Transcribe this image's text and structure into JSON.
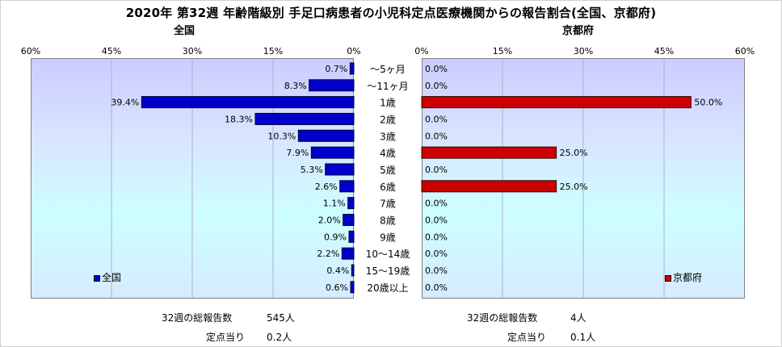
{
  "title": "2020年 第32週 年齢階級別 手足口病患者の小児科定点医療機関からの報告割合(全国、京都府)",
  "chart_data": [
    {
      "type": "bar",
      "orientation": "horizontal",
      "subtitle": "全国",
      "categories": [
        "～5ヶ月",
        "～11ヶ月",
        "1歳",
        "2歳",
        "3歳",
        "4歳",
        "5歳",
        "6歳",
        "7歳",
        "8歳",
        "9歳",
        "10～14歳",
        "15～19歳",
        "20歳以上"
      ],
      "series": [
        {
          "name": "全国",
          "values": [
            0.7,
            8.3,
            39.4,
            18.3,
            10.3,
            7.9,
            5.3,
            2.6,
            1.1,
            2.0,
            0.9,
            2.2,
            0.4,
            0.6
          ],
          "color": "#0000cc"
        }
      ],
      "value_labels": [
        "0.7%",
        "8.3%",
        "39.4%",
        "18.3%",
        "10.3%",
        "7.9%",
        "5.3%",
        "2.6%",
        "1.1%",
        "2.0%",
        "0.9%",
        "2.2%",
        "0.4%",
        "0.6%"
      ],
      "xlim": [
        0,
        60
      ],
      "x_reversed": true,
      "ticks": [
        "60%",
        "45%",
        "30%",
        "15%",
        "0%"
      ],
      "grid": true,
      "legend_position": "bottom-left"
    },
    {
      "type": "bar",
      "orientation": "horizontal",
      "subtitle": "京都府",
      "categories": [
        "～5ヶ月",
        "～11ヶ月",
        "1歳",
        "2歳",
        "3歳",
        "4歳",
        "5歳",
        "6歳",
        "7歳",
        "8歳",
        "9歳",
        "10～14歳",
        "15～19歳",
        "20歳以上"
      ],
      "series": [
        {
          "name": "京都府",
          "values": [
            0,
            0,
            50.0,
            0,
            0,
            25.0,
            0,
            25.0,
            0,
            0,
            0,
            0,
            0,
            0
          ],
          "color": "#cc0000"
        }
      ],
      "value_labels": [
        "0.0%",
        "0.0%",
        "50.0%",
        "0.0%",
        "0.0%",
        "25.0%",
        "0.0%",
        "25.0%",
        "0.0%",
        "0.0%",
        "0.0%",
        "0.0%",
        "0.0%",
        "0.0%"
      ],
      "xlim": [
        0,
        60
      ],
      "x_reversed": false,
      "ticks": [
        "0%",
        "15%",
        "30%",
        "45%",
        "60%"
      ],
      "grid": true,
      "legend_position": "bottom-right"
    }
  ],
  "footer": {
    "left_total_label": "32週の総報告数",
    "left_total_value": "545人",
    "left_per_label": "定点当り",
    "left_per_value": "0.2人",
    "right_total_label": "32週の総報告数",
    "right_total_value": "4人",
    "right_per_label": "定点当り",
    "right_per_value": "0.1人"
  }
}
